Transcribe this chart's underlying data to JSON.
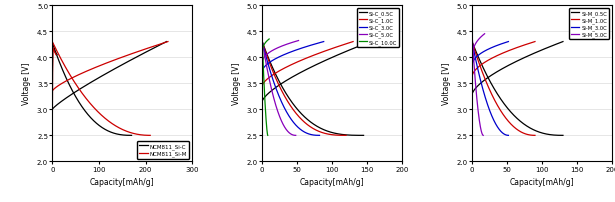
{
  "fig_width": 6.15,
  "fig_height": 2.03,
  "dpi": 100,
  "panel1": {
    "xlabel": "Capacity[mAh/g]",
    "ylabel": "Voltage [V]",
    "xlim": [
      0,
      300
    ],
    "ylim": [
      2.0,
      5.0
    ],
    "yticks": [
      2.0,
      2.5,
      3.0,
      3.5,
      4.0,
      4.5,
      5.0
    ],
    "xticks": [
      0,
      100,
      200,
      300
    ],
    "legend": [
      "NCM811_Si-C",
      "NCM811_Si-M"
    ],
    "colors": [
      "#000000",
      "#cc0000"
    ],
    "curves": [
      {
        "cap_charge": 245,
        "cap_discharge": 170,
        "v_charge_start": 3.0,
        "v_charge_end": 4.3,
        "v_discharge_start": 4.28,
        "v_discharge_end": 2.5,
        "charge_exp": 0.85,
        "discharge_exp": 2.5
      },
      {
        "cap_charge": 248,
        "cap_discharge": 210,
        "v_charge_start": 3.35,
        "v_charge_end": 4.3,
        "v_discharge_start": 4.3,
        "v_discharge_end": 2.5,
        "charge_exp": 0.75,
        "discharge_exp": 2.2
      }
    ]
  },
  "panel2": {
    "xlabel": "Capacity[mAh/g]",
    "ylabel": "Voltage [V]",
    "xlim": [
      0,
      200
    ],
    "ylim": [
      2.0,
      5.0
    ],
    "yticks": [
      2.0,
      2.5,
      3.0,
      3.5,
      4.0,
      4.5,
      5.0
    ],
    "xticks": [
      0,
      50,
      100,
      150,
      200
    ],
    "legend": [
      "Si-C_0.5C",
      "Si-C_1.0C",
      "Si-C_3.0C",
      "Si-C_5.0C",
      "Si-C_10.0C"
    ],
    "colors": [
      "#000000",
      "#cc0000",
      "#0000cc",
      "#8800bb",
      "#008800"
    ],
    "curves": [
      {
        "cap_charge": 155,
        "cap_discharge": 145,
        "v_charge_start": 3.15,
        "v_flat": 4.3,
        "v_discharge_end": 2.5,
        "charge_exp": 0.7,
        "discharge_exp": 3.0
      },
      {
        "cap_charge": 130,
        "cap_discharge": 120,
        "v_charge_start": 3.45,
        "v_flat": 4.3,
        "v_discharge_end": 2.5,
        "charge_exp": 0.65,
        "discharge_exp": 2.8
      },
      {
        "cap_charge": 88,
        "cap_discharge": 82,
        "v_charge_start": 3.72,
        "v_flat": 4.3,
        "v_discharge_end": 2.5,
        "charge_exp": 0.55,
        "discharge_exp": 2.5
      },
      {
        "cap_charge": 52,
        "cap_discharge": 48,
        "v_charge_start": 3.88,
        "v_flat": 4.32,
        "v_discharge_end": 2.5,
        "charge_exp": 0.45,
        "discharge_exp": 2.2
      },
      {
        "cap_charge": 10,
        "cap_discharge": 8,
        "v_charge_start": 4.05,
        "v_flat": 4.35,
        "v_discharge_end": 2.5,
        "charge_exp": 0.35,
        "discharge_exp": 1.5
      }
    ]
  },
  "panel3": {
    "xlabel": "Capacity[mAh/g]",
    "ylabel": "Voltage [V]",
    "xlim": [
      0,
      200
    ],
    "ylim": [
      2.0,
      5.0
    ],
    "yticks": [
      2.0,
      2.5,
      3.0,
      3.5,
      4.0,
      4.5,
      5.0
    ],
    "xticks": [
      0,
      50,
      100,
      150,
      200
    ],
    "legend": [
      "Si-M_0.5C",
      "Si-M_1.0C",
      "Si-M_3.0C",
      "Si-M_5.0C"
    ],
    "colors": [
      "#000000",
      "#cc0000",
      "#0000cc",
      "#8800bb"
    ],
    "curves": [
      {
        "cap_charge": 130,
        "cap_discharge": 130,
        "v_charge_start": 3.28,
        "v_flat": 4.3,
        "v_discharge_end": 2.5,
        "charge_exp": 0.65,
        "discharge_exp": 2.5
      },
      {
        "cap_charge": 90,
        "cap_discharge": 90,
        "v_charge_start": 3.62,
        "v_flat": 4.3,
        "v_discharge_end": 2.5,
        "charge_exp": 0.55,
        "discharge_exp": 2.2
      },
      {
        "cap_charge": 52,
        "cap_discharge": 52,
        "v_charge_start": 3.82,
        "v_flat": 4.3,
        "v_discharge_end": 2.5,
        "charge_exp": 0.45,
        "discharge_exp": 2.0
      },
      {
        "cap_charge": 18,
        "cap_discharge": 16,
        "v_charge_start": 3.92,
        "v_flat": 4.45,
        "v_discharge_end": 2.5,
        "charge_exp": 0.35,
        "discharge_exp": 1.8
      }
    ]
  }
}
